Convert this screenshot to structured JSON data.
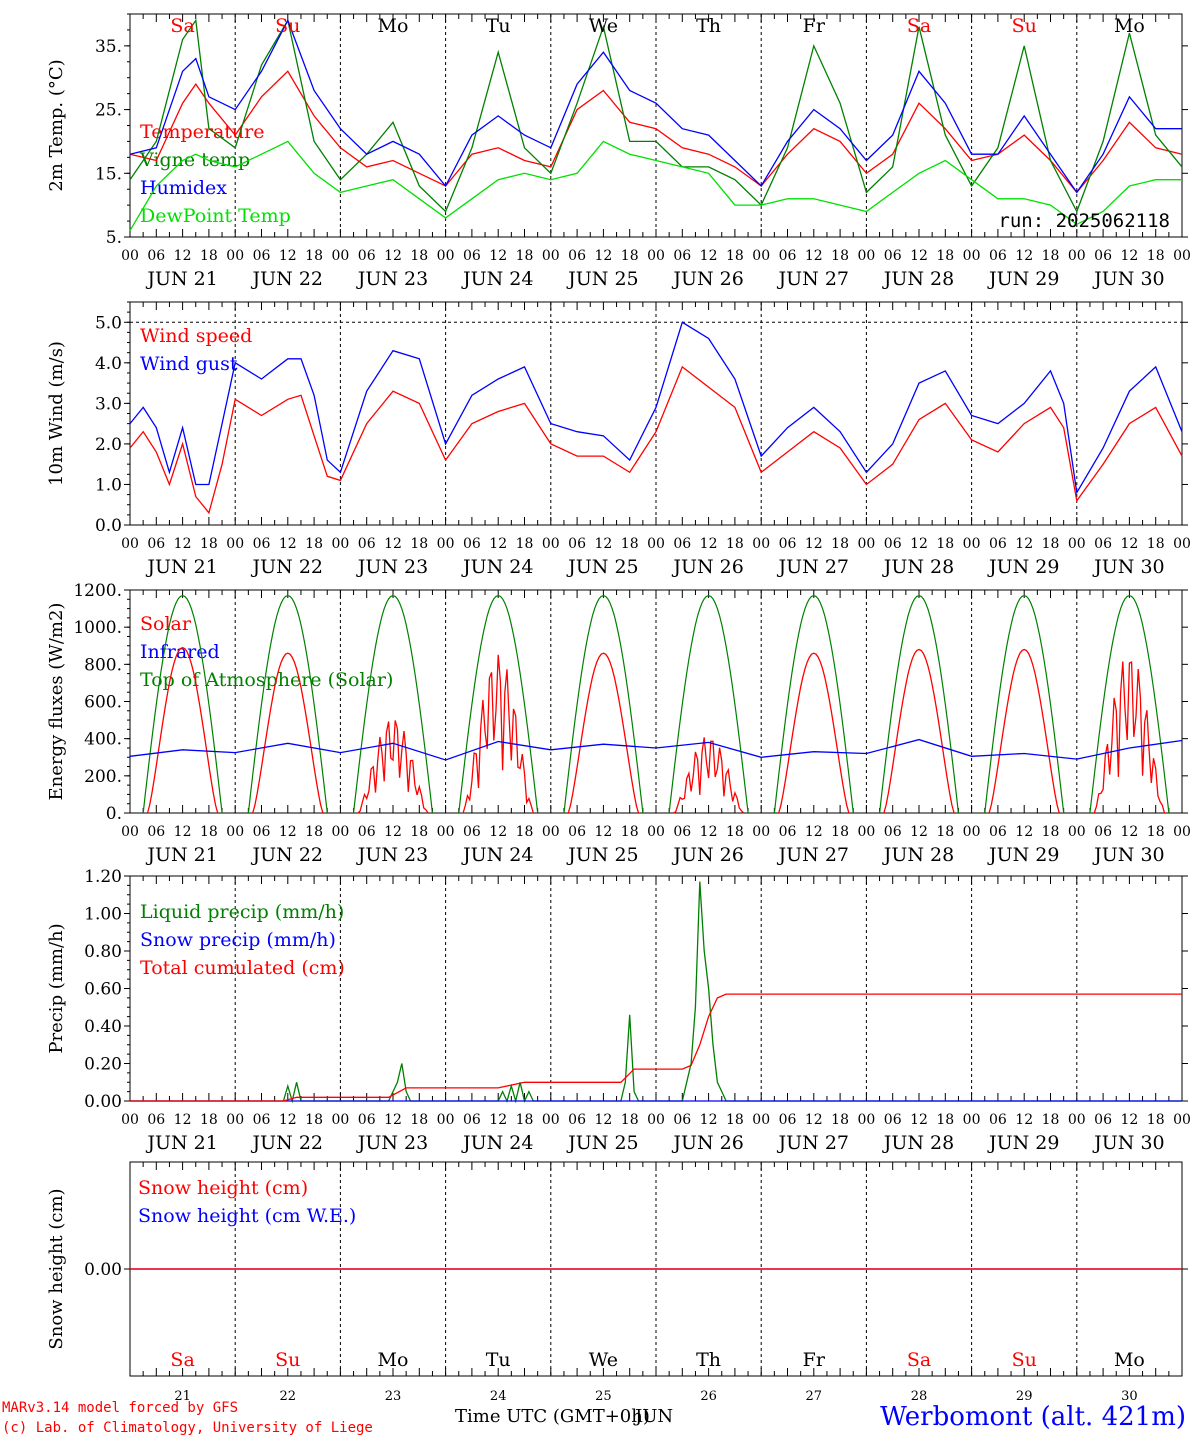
{
  "page": {
    "run_label": "run: 2025062118",
    "credit_line1": "MARv3.14 model forced by GFS",
    "credit_line2": "(c) Lab. of Climatology, University of Liege",
    "station": "Werbomont (alt. 421m)",
    "x_title": "Time UTC (GMT+0h)",
    "x_title_overlay": "JUN",
    "bottom_dates": [
      "21",
      "22",
      "23",
      "24",
      "25",
      "26",
      "27",
      "28",
      "29",
      "30"
    ],
    "weekdays": [
      "Sa",
      "Su",
      "Mo",
      "Tu",
      "We",
      "Th",
      "Fr",
      "Sa",
      "Su",
      "Mo"
    ],
    "weekend_mask": [
      true,
      true,
      false,
      false,
      false,
      false,
      false,
      true,
      true,
      false
    ],
    "hour_ticks": [
      "00",
      "06",
      "12",
      "18"
    ],
    "day_labels": [
      "JUN 21",
      "JUN 22",
      "JUN 23",
      "JUN 24",
      "JUN 25",
      "JUN 26",
      "JUN 27",
      "JUN 28",
      "JUN 29",
      "JUN 30"
    ],
    "colors": {
      "red": "#ff0000",
      "green": "#008000",
      "blue": "#0000ff",
      "lightgreen": "#00e000",
      "weekend": "#ff0000",
      "text": "#000000"
    }
  },
  "chart_data": [
    {
      "type": "line",
      "ylabel": "2m Temp. (°C)",
      "ylim": [
        5,
        40
      ],
      "yticks": [
        "5.",
        "15.",
        "25.",
        "35."
      ],
      "ytick_values": [
        5,
        15,
        25,
        35
      ],
      "x_range_hours": [
        0,
        240
      ],
      "legend": [
        "Temperature",
        "Vigne temp",
        "Humidex",
        "DewPoint Temp"
      ],
      "series": [
        {
          "name": "Temperature",
          "color": "#ff0000",
          "x": [
            0,
            6,
            12,
            15,
            18,
            24,
            30,
            36,
            42,
            48,
            54,
            60,
            66,
            72,
            78,
            84,
            90,
            96,
            102,
            108,
            114,
            120,
            126,
            132,
            138,
            144,
            150,
            156,
            162,
            168,
            174,
            180,
            186,
            192,
            198,
            204,
            210,
            216,
            222,
            228,
            234,
            240
          ],
          "values": [
            18,
            17,
            26,
            29,
            26,
            21,
            27,
            31,
            24,
            19,
            16,
            17,
            15,
            13,
            18,
            19,
            17,
            16,
            25,
            28,
            23,
            22,
            19,
            18,
            16,
            13,
            18,
            22,
            20,
            15,
            18,
            26,
            22,
            17,
            18,
            21,
            17,
            12,
            17,
            23,
            19,
            18
          ]
        },
        {
          "name": "Vigne temp",
          "color": "#008000",
          "x": [
            0,
            6,
            12,
            15,
            18,
            24,
            30,
            36,
            42,
            48,
            54,
            60,
            66,
            72,
            78,
            84,
            90,
            96,
            102,
            108,
            114,
            120,
            126,
            132,
            138,
            144,
            150,
            156,
            162,
            168,
            174,
            180,
            186,
            192,
            198,
            204,
            210,
            216,
            222,
            228,
            234,
            240
          ],
          "values": [
            14,
            20,
            36,
            39,
            22,
            19,
            32,
            39,
            20,
            14,
            18,
            23,
            13,
            9,
            19,
            34,
            19,
            15,
            26,
            38,
            20,
            20,
            16,
            16,
            14,
            10,
            19,
            35,
            26,
            12,
            16,
            38,
            21,
            13,
            19,
            35,
            17,
            9,
            20,
            37,
            21,
            16
          ]
        },
        {
          "name": "Humidex",
          "color": "#0000ff",
          "x": [
            0,
            6,
            12,
            15,
            18,
            24,
            30,
            36,
            42,
            48,
            54,
            60,
            66,
            72,
            78,
            84,
            90,
            96,
            102,
            108,
            114,
            120,
            126,
            132,
            138,
            144,
            150,
            156,
            162,
            168,
            174,
            180,
            186,
            192,
            198,
            204,
            210,
            216,
            222,
            228,
            234,
            240
          ],
          "values": [
            18,
            19,
            31,
            33,
            27,
            25,
            31,
            39,
            28,
            22,
            18,
            20,
            18,
            13,
            21,
            24,
            21,
            19,
            29,
            34,
            28,
            26,
            22,
            21,
            17,
            13,
            20,
            25,
            22,
            17,
            21,
            31,
            26,
            18,
            18,
            24,
            18,
            12,
            18,
            27,
            22,
            22
          ]
        },
        {
          "name": "DewPoint Temp",
          "color": "#00e000",
          "x": [
            0,
            6,
            12,
            15,
            18,
            24,
            30,
            36,
            42,
            48,
            54,
            60,
            66,
            72,
            78,
            84,
            90,
            96,
            102,
            108,
            114,
            120,
            126,
            132,
            138,
            144,
            150,
            156,
            162,
            168,
            174,
            180,
            186,
            192,
            198,
            204,
            210,
            216,
            222,
            228,
            234,
            240
          ],
          "values": [
            6,
            13,
            17,
            18,
            17,
            16,
            18,
            20,
            15,
            12,
            13,
            14,
            11,
            8,
            11,
            14,
            15,
            14,
            15,
            20,
            18,
            17,
            16,
            15,
            10,
            10,
            11,
            11,
            10,
            9,
            12,
            15,
            17,
            14,
            11,
            11,
            10,
            7,
            9,
            13,
            14,
            14
          ]
        }
      ]
    },
    {
      "type": "line",
      "ylabel": "10m Wind (m/s)",
      "ylim": [
        0,
        5.5
      ],
      "yticks": [
        "0.0",
        "1.0",
        "2.0",
        "3.0",
        "4.0",
        "5.0"
      ],
      "ytick_values": [
        0,
        1,
        2,
        3,
        4,
        5
      ],
      "x_range_hours": [
        0,
        240
      ],
      "legend": [
        "Wind speed",
        "Wind gust"
      ],
      "series": [
        {
          "name": "Wind speed",
          "color": "#ff0000",
          "x": [
            0,
            3,
            6,
            9,
            12,
            15,
            18,
            21,
            24,
            30,
            36,
            39,
            42,
            45,
            48,
            54,
            60,
            66,
            72,
            78,
            84,
            90,
            96,
            102,
            108,
            114,
            120,
            126,
            132,
            138,
            144,
            150,
            156,
            162,
            168,
            174,
            180,
            186,
            192,
            198,
            204,
            210,
            213,
            216,
            222,
            228,
            234,
            240
          ],
          "values": [
            1.9,
            2.3,
            1.8,
            1.0,
            2.0,
            0.7,
            0.3,
            1.5,
            3.1,
            2.7,
            3.1,
            3.2,
            2.2,
            1.2,
            1.1,
            2.5,
            3.3,
            3.0,
            1.6,
            2.5,
            2.8,
            3.0,
            2.0,
            1.7,
            1.7,
            1.3,
            2.3,
            3.9,
            3.4,
            2.9,
            1.3,
            1.8,
            2.3,
            1.9,
            1.0,
            1.5,
            2.6,
            3.0,
            2.1,
            1.8,
            2.5,
            2.9,
            2.4,
            0.6,
            1.5,
            2.5,
            2.9,
            1.7
          ]
        },
        {
          "name": "Wind gust",
          "color": "#0000ff",
          "x": [
            0,
            3,
            6,
            9,
            12,
            15,
            18,
            21,
            24,
            30,
            36,
            39,
            42,
            45,
            48,
            54,
            60,
            66,
            72,
            78,
            84,
            90,
            96,
            102,
            108,
            114,
            120,
            126,
            132,
            138,
            144,
            150,
            156,
            162,
            168,
            174,
            180,
            186,
            192,
            198,
            204,
            210,
            213,
            216,
            222,
            228,
            234,
            240
          ],
          "values": [
            2.5,
            2.9,
            2.4,
            1.3,
            2.4,
            1.0,
            1.0,
            2.5,
            4.0,
            3.6,
            4.1,
            4.1,
            3.2,
            1.6,
            1.3,
            3.3,
            4.3,
            4.1,
            2.0,
            3.2,
            3.6,
            3.9,
            2.5,
            2.3,
            2.2,
            1.6,
            2.9,
            5.0,
            4.6,
            3.6,
            1.7,
            2.4,
            2.9,
            2.3,
            1.3,
            2.0,
            3.5,
            3.8,
            2.7,
            2.5,
            3.0,
            3.8,
            3.0,
            0.8,
            1.9,
            3.3,
            3.9,
            2.3
          ]
        }
      ]
    },
    {
      "type": "line",
      "ylabel": "Energy fluxes (W/m2)",
      "ylim": [
        0,
        1200
      ],
      "yticks": [
        "0.",
        "200.",
        "400.",
        "600.",
        "800.",
        "1000.",
        "1200."
      ],
      "ytick_values": [
        0,
        200,
        400,
        600,
        800,
        1000,
        1200
      ],
      "x_range_hours": [
        0,
        240
      ],
      "legend": [
        "Solar",
        "Infrared",
        "Top of Atmosphere (Solar)"
      ],
      "toa_peak": 1170,
      "solar_peaks": [
        890,
        860,
        520,
        860,
        860,
        420,
        860,
        880,
        880,
        870
      ],
      "solar_cloudy_days": [
        2,
        3,
        5,
        9
      ],
      "series": [
        {
          "name": "Infrared",
          "color": "#0000ff",
          "x": [
            0,
            12,
            24,
            36,
            48,
            60,
            72,
            84,
            96,
            108,
            120,
            132,
            144,
            156,
            168,
            180,
            192,
            204,
            216,
            228,
            240
          ],
          "values": [
            305,
            340,
            325,
            375,
            325,
            375,
            285,
            385,
            340,
            370,
            350,
            380,
            300,
            330,
            320,
            395,
            305,
            320,
            290,
            350,
            390
          ]
        }
      ]
    },
    {
      "type": "line",
      "ylabel": "Precip (mm/h)",
      "ylim": [
        0,
        1.2
      ],
      "yticks": [
        "0.00",
        "0.20",
        "0.40",
        "0.60",
        "0.80",
        "1.00",
        "1.20"
      ],
      "ytick_values": [
        0,
        0.2,
        0.4,
        0.6,
        0.8,
        1.0,
        1.2
      ],
      "x_range_hours": [
        0,
        240
      ],
      "legend": [
        "Liquid precip (mm/h)",
        "Snow precip (mm/h)",
        "Total cumulated (cm)"
      ],
      "series": [
        {
          "name": "Liquid precip (mm/h)",
          "color": "#008000",
          "x": [
            0,
            35,
            36,
            37,
            38,
            39,
            40,
            59,
            60,
            61,
            62,
            63,
            64,
            65,
            84,
            85,
            86,
            87,
            88,
            89,
            90,
            91,
            92,
            112,
            113,
            114,
            115,
            116,
            126,
            127,
            128,
            129,
            130,
            131,
            132,
            133,
            134,
            135,
            136,
            240
          ],
          "values": [
            0,
            0,
            0.08,
            0,
            0.1,
            0,
            0,
            0,
            0.05,
            0.1,
            0.2,
            0.05,
            0,
            0,
            0,
            0.05,
            0,
            0.08,
            0,
            0.1,
            0,
            0.05,
            0,
            0,
            0.1,
            0.46,
            0.05,
            0,
            0,
            0.1,
            0.2,
            0.5,
            1.17,
            0.8,
            0.6,
            0.3,
            0.1,
            0.05,
            0,
            0
          ]
        },
        {
          "name": "Snow precip (mm/h)",
          "color": "#0000ff",
          "x": [
            0,
            240
          ],
          "values": [
            0,
            0
          ]
        },
        {
          "name": "Total cumulated (cm)",
          "color": "#ff0000",
          "x": [
            0,
            35,
            38,
            59,
            63,
            84,
            90,
            112,
            115,
            126,
            128,
            130,
            132,
            134,
            136,
            240
          ],
          "values": [
            0,
            0,
            0.02,
            0.02,
            0.07,
            0.07,
            0.1,
            0.1,
            0.17,
            0.17,
            0.19,
            0.3,
            0.45,
            0.55,
            0.57,
            0.57
          ]
        }
      ]
    },
    {
      "type": "line",
      "ylabel": "Snow height (cm)",
      "ylim": [
        -1,
        1
      ],
      "yticks": [
        "0.00"
      ],
      "ytick_values": [
        0
      ],
      "x_range_hours": [
        0,
        240
      ],
      "legend": [
        "Snow height (cm)",
        "Snow height (cm W.E.)"
      ],
      "series": [
        {
          "name": "Snow height (cm)",
          "color": "#ff0000",
          "x": [
            0,
            240
          ],
          "values": [
            0,
            0
          ]
        },
        {
          "name": "Snow height (cm W.E.)",
          "color": "#0000ff",
          "x": [
            0,
            240
          ],
          "values": [
            0,
            0
          ]
        }
      ]
    }
  ]
}
